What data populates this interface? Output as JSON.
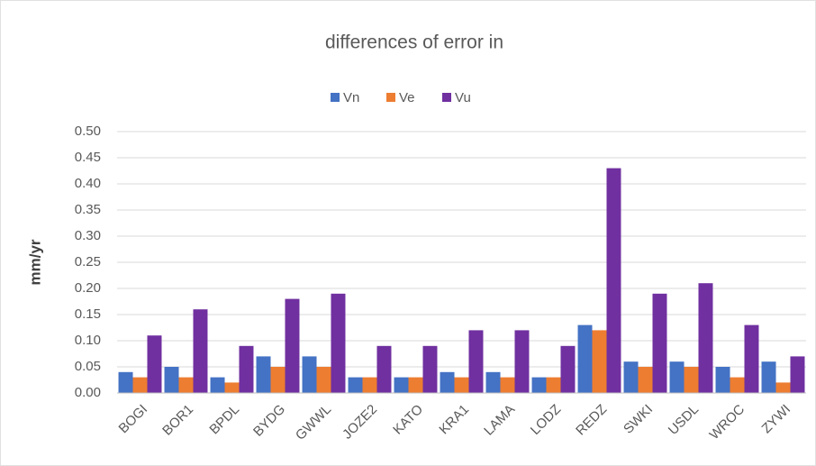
{
  "chart_data": {
    "type": "bar",
    "title": "differences of error in",
    "ylabel": "mm/yr",
    "categories": [
      "BOGI",
      "BOR1",
      "BPDL",
      "BYDG",
      "GWWL",
      "JOZE2",
      "KATO",
      "KRA1",
      "LAMA",
      "LODZ",
      "REDZ",
      "SWKI",
      "USDL",
      "WROC",
      "ZYWI"
    ],
    "series": [
      {
        "name": "Vn",
        "color": "#4472c4",
        "values": [
          0.04,
          0.05,
          0.03,
          0.07,
          0.07,
          0.03,
          0.03,
          0.04,
          0.04,
          0.03,
          0.13,
          0.06,
          0.06,
          0.05,
          0.06
        ]
      },
      {
        "name": "Ve",
        "color": "#ed7d31",
        "values": [
          0.03,
          0.03,
          0.02,
          0.05,
          0.05,
          0.03,
          0.03,
          0.03,
          0.03,
          0.03,
          0.12,
          0.05,
          0.05,
          0.03,
          0.02
        ]
      },
      {
        "name": "Vu",
        "color": "#7030a0",
        "values": [
          0.11,
          0.16,
          0.09,
          0.18,
          0.19,
          0.09,
          0.09,
          0.12,
          0.12,
          0.09,
          0.43,
          0.19,
          0.21,
          0.13,
          0.07
        ]
      }
    ],
    "ylim": [
      0,
      0.5
    ],
    "yticks": [
      {
        "value": 0,
        "label": "0.00"
      },
      {
        "value": 0.05,
        "label": "0.05"
      },
      {
        "value": 0.1,
        "label": "0.10"
      },
      {
        "value": 0.15,
        "label": "0.15"
      },
      {
        "value": 0.2,
        "label": "0.20"
      },
      {
        "value": 0.25,
        "label": "0.25"
      },
      {
        "value": 0.3,
        "label": "0.30"
      },
      {
        "value": 0.35,
        "label": "0.35"
      },
      {
        "value": 0.4,
        "label": "0.40"
      },
      {
        "value": 0.45,
        "label": "0.45"
      },
      {
        "value": 0.5,
        "label": "0.50"
      }
    ],
    "grid": true,
    "legend": "top"
  }
}
